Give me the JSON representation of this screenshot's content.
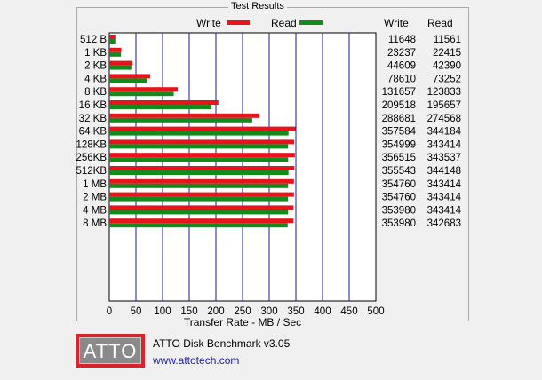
{
  "window": {
    "group_title": "Test Results"
  },
  "legend": {
    "write_label": "Write",
    "read_label": "Read"
  },
  "table": {
    "write_header": "Write",
    "read_header": "Read"
  },
  "colors": {
    "write": "#e8141b",
    "read": "#138a1c",
    "grid": "#1a1a8c"
  },
  "chart_data": {
    "type": "bar",
    "orientation": "horizontal",
    "categories": [
      "512 B",
      "1 KB",
      "2 KB",
      "4 KB",
      "8 KB",
      "16 KB",
      "32 KB",
      "64 KB",
      "128KB",
      "256KB",
      "512KB",
      "1 MB",
      "2 MB",
      "4 MB",
      "8 MB"
    ],
    "series": [
      {
        "name": "Write",
        "values": [
          11648,
          23237,
          44609,
          78610,
          131657,
          209518,
          288681,
          357584,
          354999,
          356515,
          355543,
          354760,
          354760,
          353980,
          353980
        ]
      },
      {
        "name": "Read",
        "values": [
          11561,
          22415,
          42390,
          73252,
          123833,
          195657,
          274568,
          344184,
          343414,
          343537,
          344148,
          343414,
          343414,
          343414,
          342683
        ]
      }
    ],
    "xlabel": "Transfer Rate - MB / Sec",
    "xlim": [
      0,
      500
    ],
    "xticks": [
      0,
      50,
      100,
      150,
      200,
      250,
      300,
      350,
      400,
      450,
      500
    ],
    "grid": true,
    "legend_position": "top"
  },
  "footer": {
    "logo_text": "ATTO",
    "app_title": "ATTO Disk Benchmark v3.05",
    "website": "www.attotech.com"
  }
}
